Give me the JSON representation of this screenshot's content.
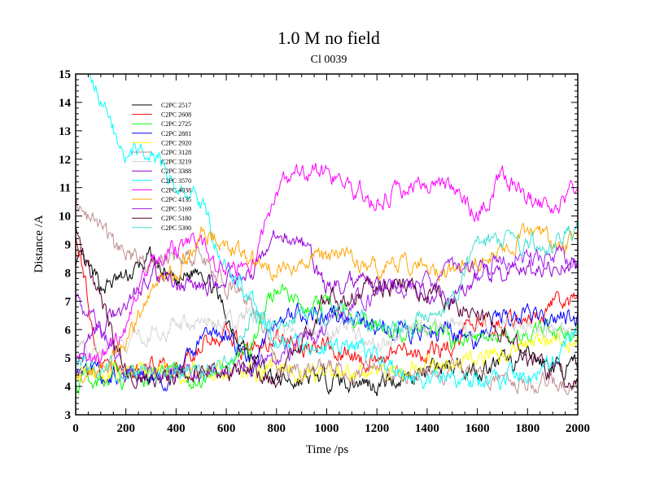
{
  "chart_data": {
    "type": "line",
    "title": "1.0 M no field",
    "subtitle": "Cl 0039",
    "xlabel": "Time /ps",
    "ylabel": "Distance /A",
    "xlim": [
      0,
      2000
    ],
    "ylim": [
      3,
      15
    ],
    "xticks": [
      "0",
      "200",
      "400",
      "600",
      "800",
      "1000",
      "1200",
      "1400",
      "1600",
      "1800",
      "2000"
    ],
    "yticks": [
      "3",
      "4",
      "5",
      "6",
      "7",
      "8",
      "9",
      "10",
      "11",
      "12",
      "13",
      "14",
      "15"
    ],
    "grid": false,
    "legend_position": "top-left",
    "x": [
      0,
      100,
      200,
      300,
      400,
      500,
      600,
      700,
      800,
      900,
      1000,
      1100,
      1200,
      1300,
      1400,
      1500,
      1600,
      1700,
      1800,
      1900,
      2000
    ],
    "series": [
      {
        "name": "C2PC 2517",
        "color": "#000000",
        "values": [
          8.5,
          7.5,
          7.8,
          8.5,
          7.5,
          8.3,
          6.5,
          5.0,
          4.2,
          4.2,
          4.3,
          4.2,
          4.1,
          4.3,
          4.5,
          4.8,
          4.6,
          4.8,
          5.0,
          4.7,
          4.6
        ]
      },
      {
        "name": "C2PC 2608",
        "color": "#ff0000",
        "values": [
          9.5,
          4.6,
          4.5,
          4.6,
          4.5,
          5.5,
          5.8,
          5.2,
          5.6,
          5.5,
          5.4,
          5.0,
          5.0,
          5.2,
          5.0,
          5.5,
          6.2,
          6.0,
          6.3,
          7.0,
          7.0
        ]
      },
      {
        "name": "C2PC 2725",
        "color": "#00ff00",
        "values": [
          4.3,
          4.3,
          4.2,
          4.4,
          4.3,
          4.1,
          4.8,
          5.5,
          7.5,
          7.0,
          6.8,
          6.5,
          6.0,
          6.0,
          6.2,
          5.5,
          5.8,
          6.0,
          5.8,
          6.0,
          5.8
        ]
      },
      {
        "name": "C2PC 2881",
        "color": "#0000ff",
        "values": [
          4.5,
          4.4,
          4.3,
          4.5,
          4.3,
          5.5,
          6.0,
          4.6,
          6.5,
          6.5,
          6.5,
          6.3,
          6.0,
          6.0,
          6.0,
          6.0,
          5.5,
          6.5,
          6.5,
          6.3,
          6.5
        ]
      },
      {
        "name": "C2PC 2920",
        "color": "#ffff00",
        "values": [
          4.5,
          4.6,
          4.4,
          4.5,
          4.4,
          4.6,
          4.4,
          4.5,
          4.6,
          4.5,
          4.4,
          4.5,
          4.4,
          4.5,
          4.8,
          4.6,
          5.0,
          5.2,
          5.5,
          5.8,
          5.6
        ]
      },
      {
        "name": "C2PC 3128",
        "color": "#bc8f8f",
        "values": [
          10.5,
          9.5,
          8.5,
          8.5,
          8.5,
          8.5,
          7.5,
          7.0,
          4.6,
          4.5,
          4.6,
          4.5,
          4.6,
          4.5,
          4.4,
          4.6,
          4.4,
          4.3,
          4.2,
          4.2,
          4.1
        ]
      },
      {
        "name": "C2PC 3219",
        "color": "#d3d3d3",
        "values": [
          5.5,
          5.0,
          5.5,
          6.0,
          6.0,
          6.5,
          6.0,
          6.5,
          6.0,
          5.8,
          6.0,
          6.0,
          5.5,
          5.8,
          6.0,
          6.2,
          6.0,
          6.0,
          6.2,
          6.0,
          6.0
        ]
      },
      {
        "name": "C2PC 3388",
        "color": "#9400d3",
        "values": [
          5.0,
          6.0,
          7.0,
          8.0,
          7.5,
          7.5,
          7.8,
          8.0,
          9.5,
          9.0,
          7.5,
          7.8,
          7.5,
          7.5,
          7.2,
          7.0,
          8.0,
          8.0,
          8.2,
          8.3,
          8.5
        ]
      },
      {
        "name": "C2PC 3570",
        "color": "#00ffff",
        "values": [
          16.0,
          14.0,
          12.0,
          12.5,
          11.0,
          10.5,
          8.0,
          7.0,
          5.5,
          5.5,
          5.5,
          5.5,
          5.2,
          4.3,
          4.2,
          4.2,
          4.2,
          4.3,
          4.5,
          5.0,
          6.0
        ]
      },
      {
        "name": "C2PC 4038",
        "color": "#ff00ff",
        "values": [
          5.0,
          5.0,
          6.0,
          8.5,
          8.8,
          9.0,
          8.0,
          8.0,
          11.0,
          11.5,
          11.5,
          11.0,
          10.5,
          11.0,
          11.2,
          11.0,
          10.0,
          11.5,
          10.5,
          10.3,
          11.0
        ]
      },
      {
        "name": "C2PC 4135",
        "color": "#ffa500",
        "values": [
          4.5,
          4.6,
          5.5,
          7.5,
          8.0,
          9.5,
          9.0,
          8.5,
          8.0,
          8.5,
          8.5,
          8.5,
          8.0,
          8.5,
          8.0,
          8.0,
          8.5,
          9.0,
          9.5,
          9.0,
          9.0
        ]
      },
      {
        "name": "C2PC 5169",
        "color": "#a020f0",
        "values": [
          7.0,
          6.0,
          4.5,
          4.6,
          4.5,
          4.5,
          4.6,
          4.8,
          5.0,
          5.5,
          6.0,
          7.0,
          7.2,
          7.5,
          7.5,
          8.0,
          8.2,
          8.5,
          8.5,
          8.5,
          8.5
        ]
      },
      {
        "name": "C2PC 5180",
        "color": "#550033",
        "values": [
          9.5,
          7.0,
          4.5,
          4.5,
          4.4,
          4.5,
          4.4,
          4.5,
          4.3,
          5.5,
          7.0,
          7.2,
          7.5,
          7.5,
          7.5,
          7.0,
          6.5,
          6.0,
          5.0,
          4.5,
          4.2
        ]
      },
      {
        "name": "C2PC 5390",
        "color": "#40e0d0",
        "values": [
          5.0,
          4.6,
          4.5,
          4.5,
          4.4,
          4.5,
          4.6,
          6.5,
          6.0,
          6.5,
          6.5,
          6.5,
          6.0,
          6.0,
          6.5,
          7.0,
          9.0,
          9.2,
          9.0,
          9.0,
          9.5
        ]
      }
    ]
  }
}
